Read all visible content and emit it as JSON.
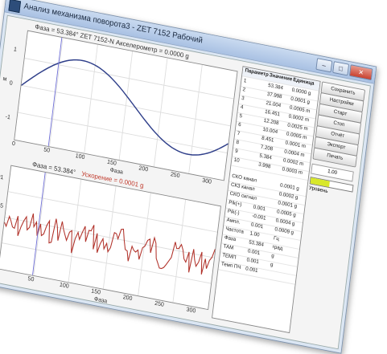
{
  "window": {
    "title": "Анализ механизма поворота3 - ZET 7152 Рабочий",
    "minimize": "–",
    "maximize": "□",
    "close": "✕"
  },
  "plot_top": {
    "title": "Фаза = 53.384°  ZET 7152-N Акселерометр = 0.0000 g",
    "y_axis_label": "м",
    "x_axis_label": "Фаза",
    "y_ticks": [
      "1",
      "0",
      "-1"
    ],
    "x_ticks": [
      "0",
      "50",
      "100",
      "150",
      "200",
      "250",
      "300"
    ]
  },
  "plot_bottom": {
    "title": "Фаза = 53.384°",
    "title_highlight": "Ускорение = 0.0001 g",
    "y_axis_label": "м",
    "x_axis_label": "Фаза",
    "y_ticks": [
      "0.001",
      "0.0005",
      "0",
      "-0.0005"
    ],
    "x_ticks": [
      "0",
      "50",
      "100",
      "150",
      "200",
      "250",
      "300"
    ]
  },
  "table": {
    "headers": [
      "Параметр",
      "Значение",
      "Единица"
    ],
    "rows": [
      [
        "1",
        "53.384",
        "0.0000 g"
      ],
      [
        "2",
        "37.998",
        "0.0001 g"
      ],
      [
        "3",
        "21.004",
        "0.0005 m"
      ],
      [
        "4",
        "16.451",
        "0.0002 m"
      ],
      [
        "5",
        "12.208",
        "0.0025 m"
      ],
      [
        "6",
        "10.004",
        "0.0005 m"
      ],
      [
        "7",
        "8.451",
        "0.0001 m"
      ],
      [
        "8",
        "7.208",
        "0.0004 m"
      ],
      [
        "9",
        "5.384",
        "0.0002 m"
      ],
      [
        "10",
        "3.998",
        "0.0003 m"
      ]
    ],
    "rows2": [
      [
        "СКО канал",
        "",
        "0.0001 g"
      ],
      [
        "СКЗ канал",
        "",
        "0.0002 g"
      ],
      [
        "СКО сигнал",
        "",
        "0.0001 g"
      ],
      [
        "Pik(+)",
        "0.001",
        "0.0005 g"
      ],
      [
        "Pik(-)",
        "-0.001",
        "0.0004 g"
      ],
      [
        "Ампл.",
        "0.001",
        "0.0009 g"
      ],
      [
        "Частота",
        "1.00",
        "Гц"
      ],
      [
        "Фаза",
        "53.384",
        "град"
      ],
      [
        "ТАМ",
        "0.001",
        "g"
      ],
      [
        "ТЕМП",
        "0.001",
        "g"
      ],
      [
        "Темп ПЧ",
        "0.001",
        ""
      ]
    ]
  },
  "side": {
    "buttons": [
      "Сохранить",
      "Настройки",
      "Старт",
      "Стоп",
      "Отчёт",
      "Экспорт",
      "Печать"
    ],
    "field_value": "1.00",
    "level": 0.45,
    "level_label": "Уровень"
  },
  "colors": {
    "curve_top": "#2f3f8a",
    "curve_bottom": "#b1322a",
    "cursor": "#6f6fd8",
    "level": "#d8e82a"
  }
}
